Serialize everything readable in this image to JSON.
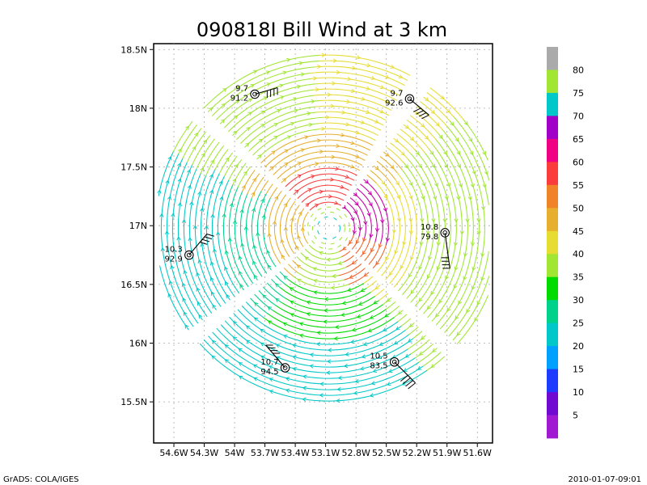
{
  "chart_data": {
    "type": "streamline",
    "title": "090818I Bill Wind at 3 km",
    "x_ticks": [
      "54.6W",
      "54.3W",
      "54W",
      "53.7W",
      "53.4W",
      "53.1W",
      "52.8W",
      "52.5W",
      "52.2W",
      "51.9W",
      "51.6W"
    ],
    "y_ticks": [
      "15.5N",
      "16N",
      "16.5N",
      "17N",
      "17.5N",
      "18N",
      "18.5N"
    ],
    "x_range": [
      -54.8,
      -51.45
    ],
    "y_range": [
      15.15,
      18.55
    ],
    "grid": true,
    "center": [
      -53.07,
      16.98
    ],
    "colorbar": {
      "labels": [
        "5",
        "10",
        "15",
        "20",
        "25",
        "30",
        "35",
        "40",
        "45",
        "50",
        "55",
        "60",
        "65",
        "70",
        "75",
        "80"
      ],
      "colors": [
        "#a01ad2",
        "#6e0ad2",
        "#1e3cff",
        "#00a0ff",
        "#00c8c8",
        "#00d28c",
        "#00dc00",
        "#a0e632",
        "#e6dc32",
        "#e6af2d",
        "#f08228",
        "#fa3c3c",
        "#f00082",
        "#a000c8",
        "#00c8c8",
        "#a0e632",
        "#aaaaaa"
      ]
    },
    "stations": [
      {
        "upper": "9.7",
        "lower": "91.2",
        "lon": -53.8,
        "lat": 18.12,
        "barb_dir": "E"
      },
      {
        "upper": "9.7",
        "lower": "92.6",
        "lon": -52.27,
        "lat": 18.08,
        "barb_dir": "SE"
      },
      {
        "upper": "10.3",
        "lower": "92.9",
        "lon": -54.45,
        "lat": 16.75,
        "barb_dir": "NE"
      },
      {
        "upper": "10.8",
        "lower": "79.8",
        "lon": -51.92,
        "lat": 16.94,
        "barb_dir": "S"
      },
      {
        "upper": "10.7",
        "lower": "94.5",
        "lon": -53.5,
        "lat": 15.79,
        "barb_dir": "NW"
      },
      {
        "upper": "10.5",
        "lower": "83.5",
        "lon": -52.42,
        "lat": 15.84,
        "barb_dir": "SW"
      }
    ]
  },
  "footer": {
    "left": "GrADS: COLA/IGES",
    "right": "2010-01-07-09:01"
  }
}
